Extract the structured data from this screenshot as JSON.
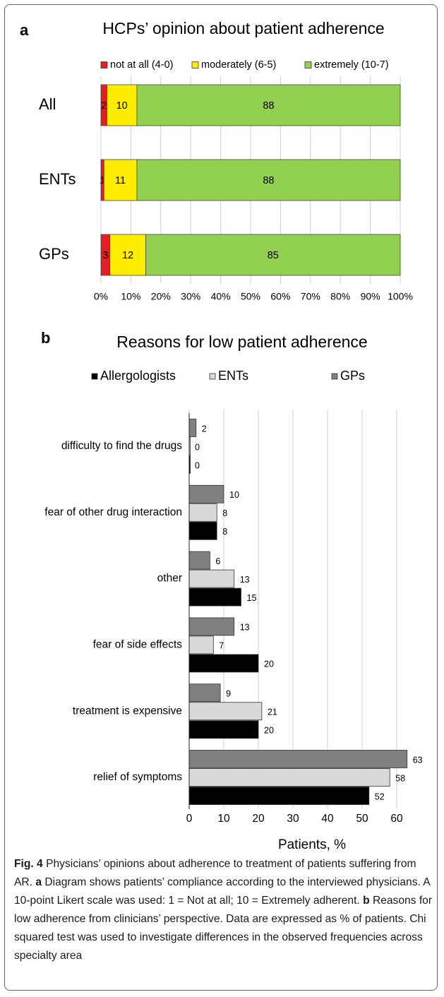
{
  "chart_data": [
    {
      "type": "bar",
      "orientation": "horizontal",
      "stacked": true,
      "panel": "a",
      "title": "HCPs’ opinion about patient adherence",
      "categories": [
        "All",
        "ENTs",
        "GPs"
      ],
      "series": [
        {
          "name": "not at all (4-0)",
          "color": "#e31e24",
          "values": [
            2,
            1,
            3
          ]
        },
        {
          "name": "moderately (6-5)",
          "color": "#ffed00",
          "values": [
            10,
            11,
            12
          ]
        },
        {
          "name": "extremely (10-7)",
          "color": "#92d050",
          "values": [
            88,
            88,
            85
          ]
        }
      ],
      "xlim": [
        0,
        100
      ],
      "xticks": [
        {
          "value": 0,
          "label": "0%"
        },
        {
          "value": 10,
          "label": "10%"
        },
        {
          "value": 20,
          "label": "20%"
        },
        {
          "value": 30,
          "label": "30%"
        },
        {
          "value": 40,
          "label": "40%"
        },
        {
          "value": 50,
          "label": "50%"
        },
        {
          "value": 60,
          "label": "60%"
        },
        {
          "value": 70,
          "label": "70%"
        },
        {
          "value": 80,
          "label": "80%"
        },
        {
          "value": 90,
          "label": "90%"
        },
        {
          "value": 100,
          "label": "100%"
        }
      ],
      "grid": true,
      "legend": "top"
    },
    {
      "type": "bar",
      "orientation": "horizontal",
      "stacked": false,
      "panel": "b",
      "title": "Reasons for low patient adherence",
      "categories": [
        "difficulty to find the drugs",
        "fear of other drug interaction",
        "other",
        "fear of side effects",
        "treatment is expensive",
        "relief of symptoms"
      ],
      "series": [
        {
          "name": "Allergologists",
          "color": "#000000",
          "values": [
            0,
            8,
            15,
            20,
            20,
            52
          ]
        },
        {
          "name": "ENTs",
          "color": "#d9d9d9",
          "values": [
            0,
            8,
            13,
            7,
            21,
            58
          ]
        },
        {
          "name": "GPs",
          "color": "#808080",
          "values": [
            2,
            10,
            6,
            13,
            9,
            63
          ]
        }
      ],
      "xlabel": "Patients, %",
      "xlim": [
        0,
        65
      ],
      "xticks": [
        0,
        10,
        20,
        30,
        40,
        50,
        60
      ],
      "grid": true,
      "legend": "top"
    }
  ],
  "caption": [
    {
      "text": "Fig. 4",
      "bold": true
    },
    {
      "text": " Physicians’ opinions about adherence to treatment of patients suffering from AR. ",
      "bold": false
    },
    {
      "text": "a",
      "bold": true
    },
    {
      "text": " Diagram shows patients’ compliance according to the interviewed physicians. A 10-point Likert scale was used: 1 = Not at all; 10 = Extremely adherent. ",
      "bold": false
    },
    {
      "text": "b",
      "bold": true
    },
    {
      "text": " Reasons for low adherence from clinicians’ perspective. Data are expressed as % of patients. Chi squared test was used to investigate differences in the observed frequencies across specialty area",
      "bold": false
    }
  ]
}
